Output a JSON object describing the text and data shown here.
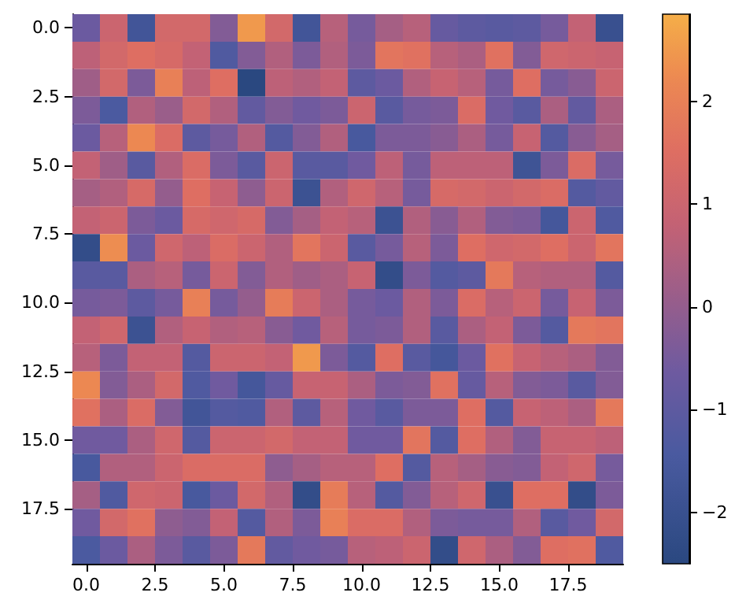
{
  "chart_data": {
    "type": "heatmap",
    "x": [
      0,
      1,
      2,
      3,
      4,
      5,
      6,
      7,
      8,
      9,
      10,
      11,
      12,
      13,
      14,
      15,
      16,
      17,
      18,
      19
    ],
    "xlim": [
      -0.5,
      19.5
    ],
    "xticks": [
      {
        "value": 0,
        "label": "0.0"
      },
      {
        "value": 2.5,
        "label": "2.5"
      },
      {
        "value": 5,
        "label": "5.0"
      },
      {
        "value": 7.5,
        "label": "7.5"
      },
      {
        "value": 10,
        "label": "10.0"
      },
      {
        "value": 12.5,
        "label": "12.5"
      },
      {
        "value": 15,
        "label": "15.0"
      },
      {
        "value": 17.5,
        "label": "17.5"
      }
    ],
    "ylim": [
      19.5,
      -0.5
    ],
    "yticks": [
      {
        "value": 0,
        "label": "0.0"
      },
      {
        "value": 2.5,
        "label": "2.5"
      },
      {
        "value": 5,
        "label": "5.0"
      },
      {
        "value": 7.5,
        "label": "7.5"
      },
      {
        "value": 10,
        "label": "10.0"
      },
      {
        "value": 12.5,
        "label": "12.5"
      },
      {
        "value": 15,
        "label": "15.0"
      },
      {
        "value": 17.5,
        "label": "17.5"
      }
    ],
    "clim": [
      -2.5,
      2.85
    ],
    "cticks": [
      {
        "value": -2,
        "label": "−2"
      },
      {
        "value": -1,
        "label": "−1"
      },
      0,
      1,
      2
    ],
    "cells": [
      [
        -0.7,
        1.0,
        -1.7,
        1.2,
        1.2,
        -0.3,
        2.5,
        1.2,
        -1.7,
        0.6,
        -0.5,
        0.3,
        0.6,
        -0.8,
        -1.0,
        -1.1,
        -1.0,
        -0.5,
        0.8,
        -2.0
      ],
      [
        0.7,
        1.2,
        1.5,
        1.3,
        0.8,
        -1.3,
        -0.3,
        0.5,
        -0.4,
        0.5,
        -0.4,
        1.7,
        1.6,
        0.6,
        0.4,
        1.6,
        -0.3,
        1.1,
        1.0,
        0.9
      ],
      [
        0.2,
        1.2,
        -0.4,
        2.0,
        0.7,
        1.5,
        -2.5,
        0.7,
        0.5,
        0.8,
        -1.0,
        -0.7,
        0.5,
        0.9,
        0.6,
        -0.5,
        1.5,
        -0.5,
        -0.2,
        1.0
      ],
      [
        -0.4,
        -1.4,
        0.5,
        0.1,
        1.2,
        0.5,
        -0.9,
        -0.3,
        -0.6,
        -0.4,
        1.0,
        -1.1,
        -0.5,
        -0.4,
        1.4,
        -0.6,
        -1.1,
        0.4,
        -0.9,
        0.4
      ],
      [
        -0.7,
        0.6,
        2.2,
        1.4,
        -1.0,
        -0.5,
        0.5,
        -1.2,
        -0.3,
        0.5,
        -1.5,
        -0.4,
        -0.4,
        -0.2,
        0.4,
        -0.5,
        0.9,
        -1.2,
        -0.2,
        0.3
      ],
      [
        0.8,
        0.2,
        -1.1,
        0.5,
        1.4,
        -0.4,
        -1.1,
        1.0,
        -1.1,
        -1.1,
        -0.6,
        0.7,
        -0.5,
        0.7,
        0.7,
        0.7,
        -1.8,
        -0.4,
        1.4,
        -0.5
      ],
      [
        0.3,
        0.5,
        1.3,
        0.0,
        1.5,
        0.9,
        -0.1,
        1.0,
        -1.9,
        0.5,
        1.1,
        0.6,
        -0.5,
        1.3,
        1.2,
        1.0,
        1.2,
        1.4,
        -1.2,
        -0.9
      ],
      [
        0.8,
        1.0,
        -0.4,
        -0.7,
        1.3,
        1.1,
        1.3,
        -0.3,
        0.3,
        0.8,
        0.6,
        -1.9,
        0.5,
        -0.2,
        0.5,
        -0.3,
        -0.4,
        -1.6,
        1.0,
        -1.3
      ],
      [
        -2.2,
        2.3,
        -0.7,
        1.1,
        0.7,
        1.4,
        1.0,
        0.5,
        1.7,
        1.0,
        -1.1,
        -0.5,
        0.6,
        -0.4,
        1.5,
        1.1,
        1.2,
        1.5,
        1.0,
        1.7
      ],
      [
        -1.1,
        -1.1,
        0.4,
        0.6,
        -0.5,
        1.0,
        -0.3,
        0.5,
        0.2,
        0.4,
        0.9,
        -2.2,
        -0.4,
        -1.2,
        -1.0,
        1.8,
        0.6,
        0.5,
        0.5,
        -1.2
      ],
      [
        -0.5,
        -0.4,
        -1.0,
        -0.5,
        2.0,
        -0.5,
        0.0,
        1.9,
        1.0,
        0.4,
        -0.5,
        -0.7,
        0.5,
        -0.4,
        1.4,
        0.6,
        1.0,
        -0.5,
        0.9,
        -0.4
      ],
      [
        0.8,
        1.1,
        -1.9,
        0.5,
        0.9,
        0.5,
        0.6,
        -0.2,
        -0.6,
        0.6,
        -0.5,
        -0.4,
        0.5,
        -1.1,
        0.4,
        0.8,
        -0.4,
        -1.2,
        1.8,
        1.7
      ],
      [
        0.6,
        -0.4,
        0.8,
        0.8,
        -1.2,
        1.0,
        1.0,
        0.8,
        2.5,
        -0.4,
        -1.2,
        1.5,
        -1.1,
        -1.6,
        -0.7,
        1.6,
        0.9,
        0.6,
        0.4,
        -0.3
      ],
      [
        2.2,
        -0.3,
        0.4,
        1.2,
        -1.3,
        -0.6,
        -1.6,
        -0.8,
        0.9,
        0.9,
        0.4,
        -0.4,
        -0.3,
        1.6,
        -0.8,
        0.6,
        -0.3,
        -0.4,
        -1.1,
        -0.3
      ],
      [
        1.6,
        0.4,
        1.4,
        -0.3,
        -1.7,
        -1.2,
        -1.3,
        0.5,
        -1.0,
        0.6,
        -0.6,
        -1.1,
        -0.4,
        -0.4,
        1.5,
        -1.2,
        0.9,
        0.7,
        0.4,
        1.8
      ],
      [
        -0.6,
        -0.6,
        0.4,
        1.1,
        -1.2,
        1.0,
        1.0,
        1.2,
        0.8,
        0.8,
        -0.6,
        -0.6,
        1.7,
        -1.2,
        1.5,
        0.5,
        -0.3,
        0.9,
        0.9,
        0.7
      ],
      [
        -1.5,
        0.5,
        0.5,
        1.0,
        1.4,
        1.4,
        1.4,
        -0.1,
        0.3,
        0.6,
        0.6,
        1.5,
        -1.2,
        0.6,
        0.3,
        -0.2,
        -0.3,
        0.8,
        1.1,
        -0.5
      ],
      [
        0.3,
        -1.3,
        1.1,
        1.0,
        -1.5,
        -0.7,
        1.2,
        0.5,
        -2.2,
        1.9,
        0.6,
        -1.2,
        -0.3,
        0.6,
        1.1,
        -2.0,
        1.5,
        1.5,
        -2.2,
        -0.4
      ],
      [
        -0.6,
        1.2,
        1.6,
        -0.1,
        -0.3,
        0.8,
        -1.2,
        0.5,
        -0.4,
        2.0,
        1.4,
        1.4,
        0.5,
        -0.4,
        -0.5,
        -0.5,
        0.5,
        -1.1,
        -0.6,
        1.2
      ],
      [
        -1.4,
        -0.7,
        0.4,
        -0.4,
        -1.1,
        -0.4,
        1.8,
        -0.9,
        -0.6,
        -0.5,
        0.6,
        0.7,
        1.0,
        -2.2,
        1.1,
        0.4,
        -0.3,
        1.5,
        1.6,
        -1.3
      ]
    ]
  }
}
